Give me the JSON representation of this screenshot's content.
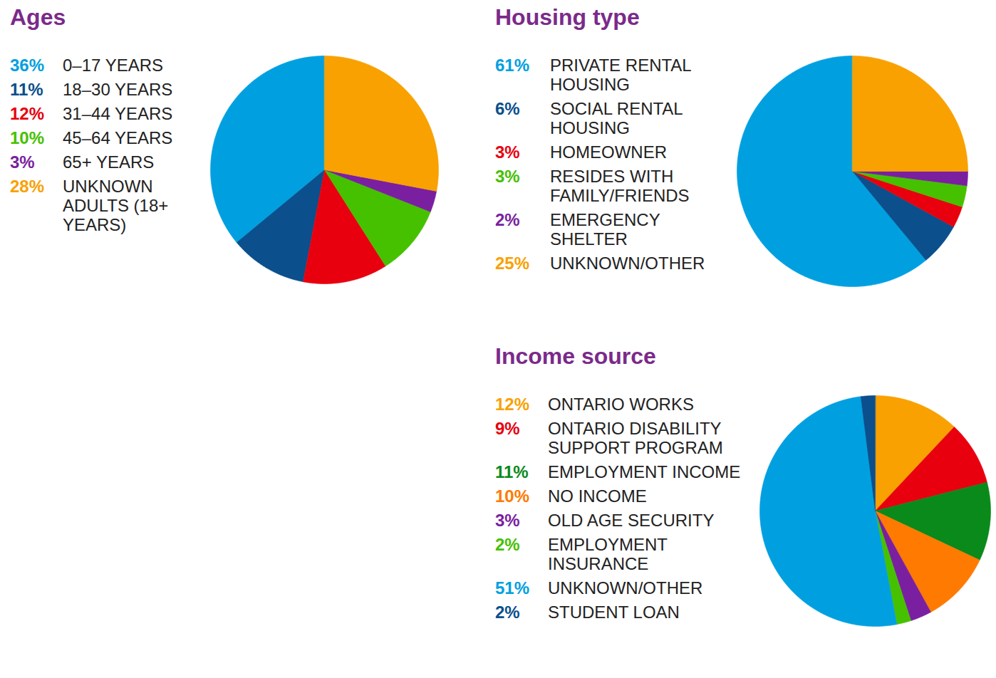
{
  "chart_data": [
    {
      "type": "pie",
      "title": "Ages",
      "legend": "left",
      "categories": [
        "0–17 YEARS",
        "18–30 YEARS",
        "31–44 YEARS",
        "45–64 YEARS",
        "65+ YEARS",
        "UNKNOWN ADULTS (18+ YEARS)"
      ],
      "values": [
        36,
        11,
        12,
        10,
        3,
        28
      ],
      "value_labels": [
        "36%",
        "11%",
        "12%",
        "10%",
        "3%",
        "28%"
      ],
      "colors": [
        "#00a0e0",
        "#0b4f8c",
        "#e8000e",
        "#46c100",
        "#7a1fa0",
        "#f9a100"
      ]
    },
    {
      "type": "pie",
      "title": "Housing type",
      "legend": "left",
      "categories": [
        "PRIVATE RENTAL HOUSING",
        "SOCIAL RENTAL HOUSING",
        "HOMEOWNER",
        "RESIDES WITH FAMILY/FRIENDS",
        "EMERGENCY SHELTER",
        "UNKNOWN/OTHER"
      ],
      "values": [
        61,
        6,
        3,
        3,
        2,
        25
      ],
      "value_labels": [
        "61%",
        "6%",
        "3%",
        "3%",
        "2%",
        "25%"
      ],
      "colors": [
        "#00a0e0",
        "#0b4f8c",
        "#e8000e",
        "#46c100",
        "#7a1fa0",
        "#f9a100"
      ]
    },
    {
      "type": "pie",
      "title": "Income source",
      "legend": "left",
      "categories": [
        "ONTARIO WORKS",
        "ONTARIO DISABILITY SUPPORT PROGRAM",
        "EMPLOYMENT INCOME",
        "NO INCOME",
        "OLD AGE SECURITY",
        "EMPLOYMENT INSURANCE",
        "UNKNOWN/OTHER",
        "STUDENT LOAN"
      ],
      "values": [
        12,
        9,
        11,
        10,
        3,
        2,
        51,
        2
      ],
      "value_labels": [
        "12%",
        "9%",
        "11%",
        "10%",
        "3%",
        "2%",
        "51%",
        "2%"
      ],
      "colors": [
        "#f9a100",
        "#e8000e",
        "#0a8a1a",
        "#ff7a00",
        "#7a1fa0",
        "#46c100",
        "#00a0e0",
        "#0b4f8c"
      ]
    }
  ]
}
